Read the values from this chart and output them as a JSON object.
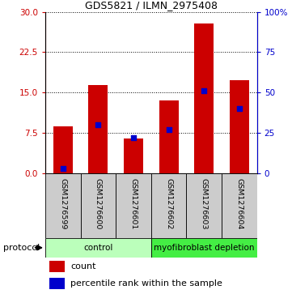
{
  "title": "GDS5821 / ILMN_2975408",
  "samples": [
    "GSM1276599",
    "GSM1276600",
    "GSM1276601",
    "GSM1276602",
    "GSM1276603",
    "GSM1276604"
  ],
  "counts": [
    8.7,
    16.4,
    6.5,
    13.5,
    27.8,
    17.3
  ],
  "percentile_ranks": [
    3.0,
    30.0,
    22.0,
    27.0,
    51.0,
    40.0
  ],
  "ylim_left": [
    0,
    30
  ],
  "ylim_right": [
    0,
    100
  ],
  "yticks_left": [
    0,
    7.5,
    15,
    22.5,
    30
  ],
  "yticks_right": [
    0,
    25,
    50,
    75,
    100
  ],
  "bar_color": "#cc0000",
  "dot_color": "#0000cc",
  "bar_width": 0.55,
  "groups": [
    {
      "label": "control",
      "indices": [
        0,
        1,
        2
      ],
      "color": "#bbffbb"
    },
    {
      "label": "myofibroblast depletion",
      "indices": [
        3,
        4,
        5
      ],
      "color": "#44ee44"
    }
  ],
  "protocol_label": "protocol",
  "legend_count_label": "count",
  "legend_percentile_label": "percentile rank within the sample",
  "grid_color": "#000000",
  "sample_area_bg": "#cccccc",
  "left_axis_color": "#cc0000",
  "right_axis_color": "#0000cc"
}
